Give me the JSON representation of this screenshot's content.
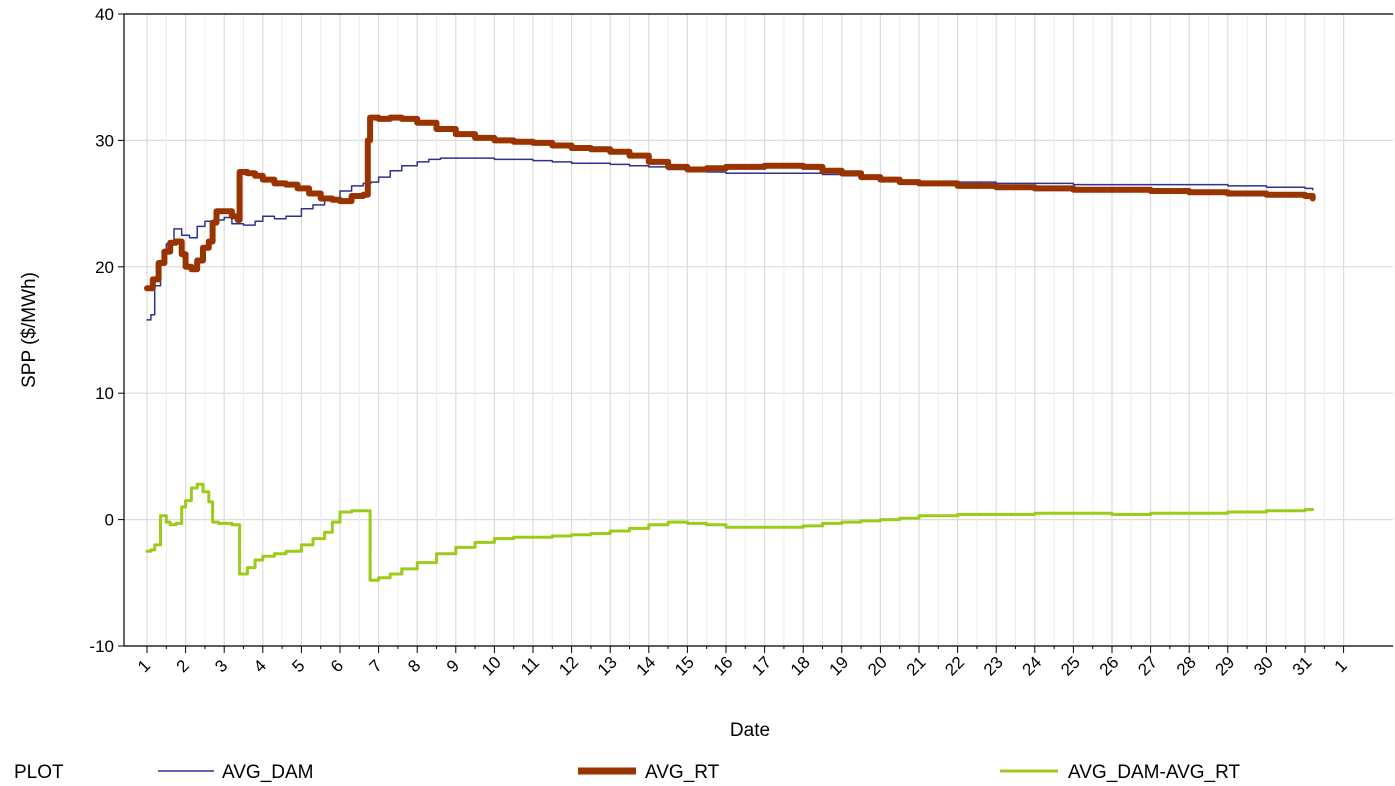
{
  "chart_data": {
    "type": "line",
    "xlabel": "Date",
    "ylabel": "SPP ($/MWh)",
    "ylim": [
      -10,
      40
    ],
    "yticks": [
      "-10",
      "0",
      "10",
      "20",
      "30",
      "40"
    ],
    "x_tick_labels": [
      "1",
      "2",
      "3",
      "4",
      "5",
      "6",
      "7",
      "8",
      "9",
      "10",
      "11",
      "12",
      "13",
      "14",
      "15",
      "16",
      "17",
      "18",
      "19",
      "20",
      "21",
      "22",
      "23",
      "24",
      "25",
      "26",
      "27",
      "28",
      "29",
      "30",
      "31",
      "1"
    ],
    "grid": true,
    "legend_title": "PLOT",
    "legend_position": "bottom",
    "series": [
      {
        "name": "AVG_DAM",
        "color": "#2e3192",
        "x": [
          1,
          1.1,
          1.2,
          1.35,
          1.5,
          1.7,
          1.9,
          2.1,
          2.3,
          2.5,
          2.8,
          3.0,
          3.2,
          3.5,
          3.8,
          4.0,
          4.3,
          4.6,
          5.0,
          5.3,
          5.6,
          6.0,
          6.3,
          6.6,
          6.8,
          7.0,
          7.3,
          7.6,
          8.0,
          8.3,
          8.6,
          9.0,
          9.5,
          10,
          10.5,
          11,
          11.5,
          12,
          12.5,
          13,
          13.5,
          14,
          14.5,
          15,
          15.5,
          16,
          17,
          18,
          18.5,
          19,
          19.5,
          20,
          20.5,
          21,
          22,
          23,
          24,
          25,
          26,
          27,
          28,
          29,
          30,
          31,
          31.2
        ],
        "values": [
          15.8,
          16.2,
          18.5,
          20.5,
          21.8,
          23.0,
          22.5,
          22.3,
          23.2,
          23.6,
          23.7,
          23.9,
          23.4,
          23.3,
          23.6,
          24.0,
          23.8,
          24.0,
          24.6,
          24.9,
          25.3,
          26.0,
          26.4,
          26.6,
          26.7,
          27.1,
          27.6,
          28.0,
          28.3,
          28.5,
          28.6,
          28.6,
          28.6,
          28.5,
          28.5,
          28.4,
          28.3,
          28.2,
          28.2,
          28.1,
          28.0,
          27.9,
          27.7,
          27.6,
          27.5,
          27.4,
          27.4,
          27.4,
          27.3,
          27.2,
          27.0,
          26.9,
          26.8,
          26.7,
          26.7,
          26.6,
          26.6,
          26.5,
          26.5,
          26.5,
          26.5,
          26.4,
          26.3,
          26.2,
          26.1
        ]
      },
      {
        "name": "AVG_RT",
        "color": "#993300",
        "x": [
          1,
          1.15,
          1.3,
          1.45,
          1.6,
          1.75,
          1.9,
          2.0,
          2.15,
          2.3,
          2.45,
          2.6,
          2.7,
          2.8,
          3.0,
          3.2,
          3.35,
          3.4,
          3.6,
          3.8,
          4.0,
          4.3,
          4.6,
          4.9,
          5.2,
          5.5,
          5.8,
          6.0,
          6.3,
          6.6,
          6.72,
          6.78,
          7.0,
          7.3,
          7.6,
          8.0,
          8.5,
          9.0,
          9.5,
          10,
          10.5,
          11,
          11.5,
          12,
          12.5,
          13,
          13.5,
          14,
          14.5,
          15,
          15.5,
          16,
          17,
          18,
          18.5,
          19,
          19.5,
          20,
          20.5,
          21,
          22,
          23,
          24,
          25,
          26,
          27,
          28,
          29,
          30,
          31,
          31.2
        ],
        "values": [
          18.3,
          19.0,
          20.3,
          21.2,
          21.9,
          22.0,
          21.0,
          20.0,
          19.8,
          20.5,
          21.5,
          22.0,
          23.5,
          24.4,
          24.4,
          24.0,
          23.7,
          27.5,
          27.4,
          27.2,
          26.9,
          26.6,
          26.5,
          26.2,
          25.8,
          25.4,
          25.3,
          25.2,
          25.6,
          25.7,
          30.0,
          31.8,
          31.7,
          31.8,
          31.7,
          31.4,
          30.9,
          30.5,
          30.2,
          30.0,
          29.9,
          29.8,
          29.6,
          29.4,
          29.3,
          29.1,
          28.8,
          28.3,
          27.9,
          27.7,
          27.8,
          27.9,
          28.0,
          27.9,
          27.6,
          27.4,
          27.1,
          26.9,
          26.7,
          26.6,
          26.4,
          26.3,
          26.2,
          26.1,
          26.1,
          26.0,
          25.9,
          25.8,
          25.7,
          25.6,
          25.4
        ]
      },
      {
        "name": "AVG_DAM-AVG_RT",
        "color": "#9bcb1b",
        "x": [
          1,
          1.1,
          1.2,
          1.35,
          1.5,
          1.6,
          1.75,
          1.9,
          2.0,
          2.15,
          2.3,
          2.45,
          2.6,
          2.7,
          2.85,
          3.0,
          3.2,
          3.35,
          3.4,
          3.6,
          3.8,
          4.0,
          4.3,
          4.6,
          5.0,
          5.3,
          5.6,
          5.8,
          6.0,
          6.3,
          6.6,
          6.72,
          6.78,
          7.0,
          7.3,
          7.6,
          8.0,
          8.5,
          9.0,
          9.5,
          10,
          10.5,
          11,
          11.5,
          12,
          12.5,
          13,
          13.5,
          14,
          14.5,
          15,
          15.5,
          16,
          17,
          18,
          18.5,
          19,
          19.5,
          20,
          20.5,
          21,
          22,
          23,
          24,
          25,
          26,
          27,
          28,
          29,
          30,
          31,
          31.2
        ],
        "values": [
          -2.5,
          -2.4,
          -2.0,
          0.3,
          -0.2,
          -0.4,
          -0.3,
          1.0,
          1.5,
          2.5,
          2.8,
          2.2,
          1.4,
          -0.2,
          -0.3,
          -0.3,
          -0.4,
          -0.4,
          -4.3,
          -3.8,
          -3.2,
          -2.9,
          -2.7,
          -2.5,
          -2.0,
          -1.5,
          -1.0,
          -0.2,
          0.6,
          0.7,
          0.7,
          0.7,
          -4.8,
          -4.6,
          -4.3,
          -3.9,
          -3.4,
          -2.7,
          -2.2,
          -1.8,
          -1.5,
          -1.4,
          -1.4,
          -1.3,
          -1.2,
          -1.1,
          -0.9,
          -0.7,
          -0.4,
          -0.2,
          -0.3,
          -0.4,
          -0.6,
          -0.6,
          -0.5,
          -0.3,
          -0.2,
          -0.1,
          0.0,
          0.1,
          0.3,
          0.4,
          0.4,
          0.5,
          0.5,
          0.4,
          0.5,
          0.5,
          0.6,
          0.7,
          0.8,
          0.8
        ]
      }
    ]
  },
  "legend": {
    "title": "PLOT",
    "items": [
      {
        "label": "AVG_DAM",
        "color": "#2e3192"
      },
      {
        "label": "AVG_RT",
        "color": "#993300"
      },
      {
        "label": "AVG_DAM-AVG_RT",
        "color": "#9bcb1b"
      }
    ]
  }
}
